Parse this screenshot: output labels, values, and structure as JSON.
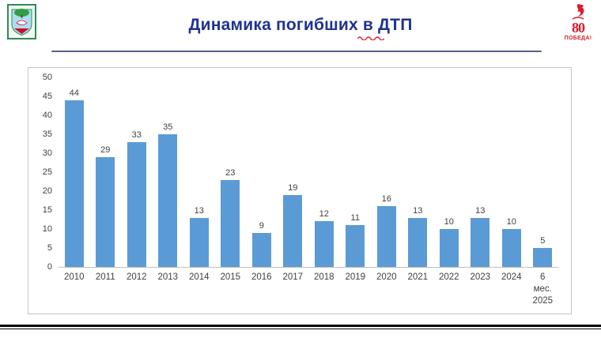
{
  "header": {
    "title": "Динамика погибших в ДТП"
  },
  "logos": {
    "victory": {
      "number": "80",
      "label": "ПОБЕДА!"
    }
  },
  "chart_data": {
    "type": "bar",
    "title": "Динамика погибших в ДТП",
    "categories": [
      "2010",
      "2011",
      "2012",
      "2013",
      "2014",
      "2015",
      "2016",
      "2017",
      "2018",
      "2019",
      "2020",
      "2021",
      "2022",
      "2023",
      "2024",
      "6\nмес.\n2025"
    ],
    "values": [
      44,
      29,
      33,
      35,
      13,
      23,
      9,
      19,
      12,
      11,
      16,
      13,
      10,
      13,
      10,
      5
    ],
    "xlabel": "",
    "ylabel": "",
    "ylim": [
      0,
      50
    ],
    "ytick_step": 5,
    "bar_color": "#5B9BD5",
    "value_label_color": "#404040",
    "grid": false,
    "legend": false
  },
  "colors": {
    "title": "#1F3390",
    "separator": "#50618F",
    "chart_border": "#C6C6C6",
    "spellcheck": "#E0202A"
  }
}
